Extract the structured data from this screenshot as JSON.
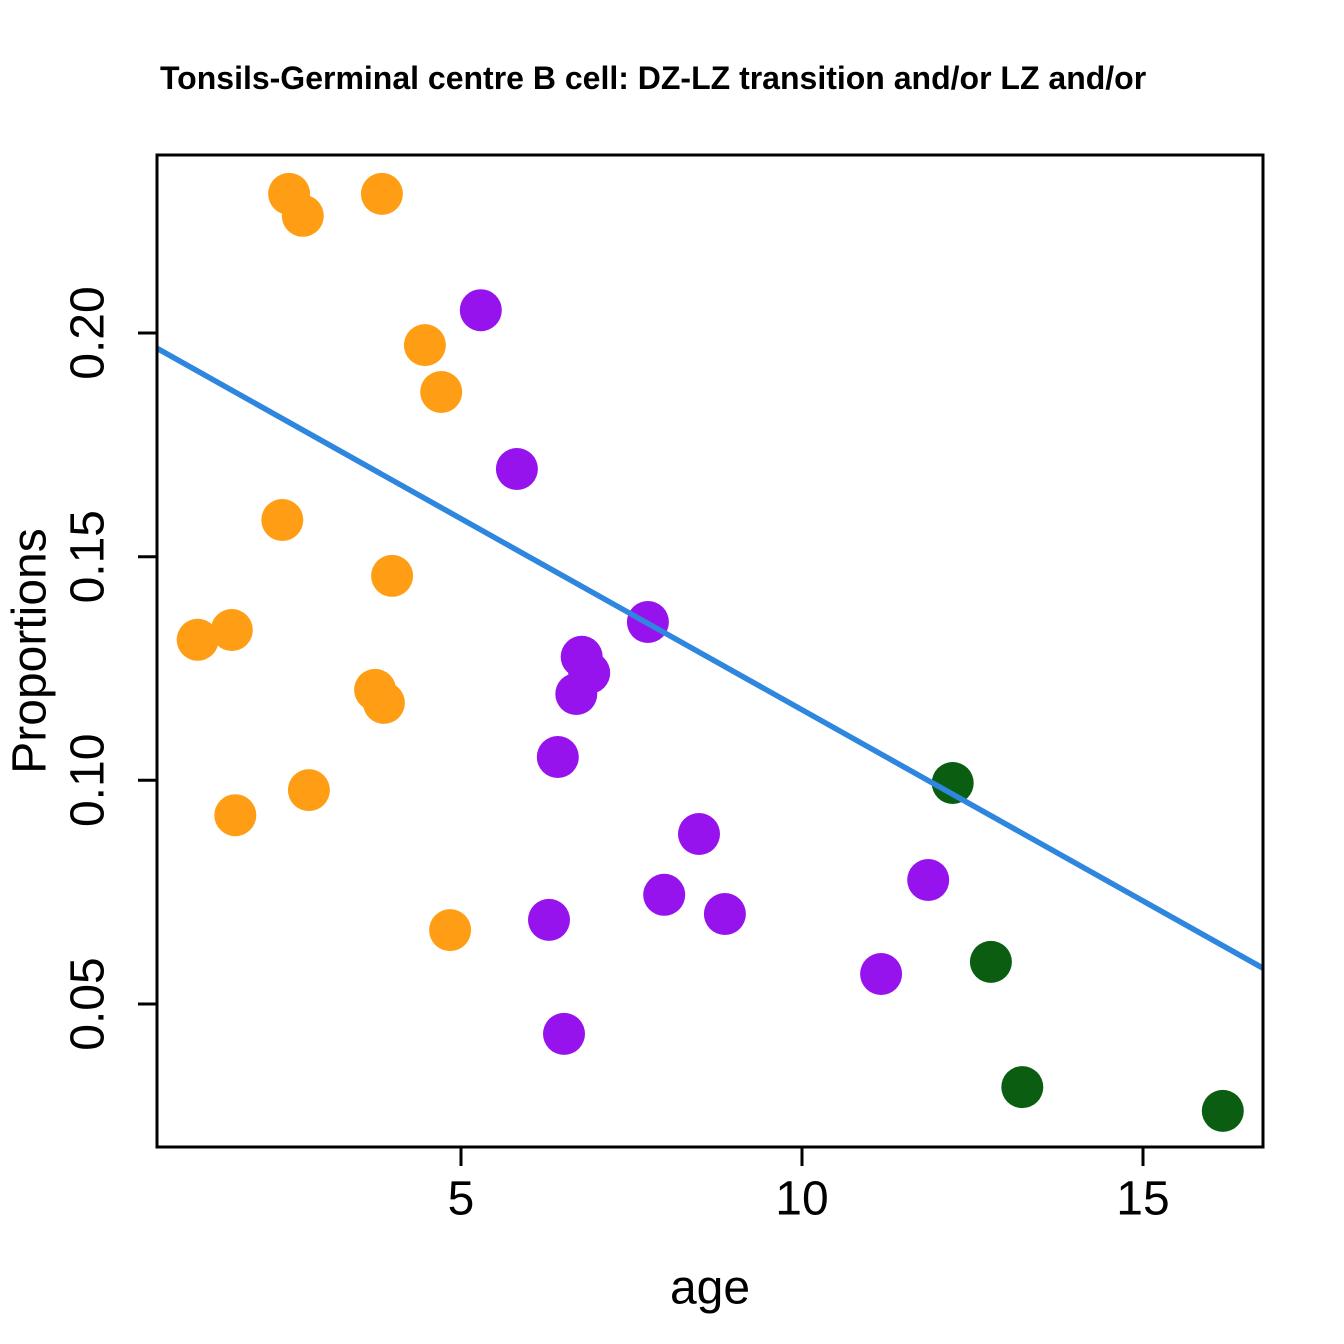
{
  "figure": {
    "title": "Tonsils-Germinal centre B cell: DZ-LZ transition and/or LZ and/or",
    "xlabel": "age",
    "ylabel": "Proportions"
  },
  "colors": {
    "group_orange": "#FF9E14",
    "group_purple": "#9713EE",
    "group_green": "#0B5E11",
    "trend_line": "#2E86DE",
    "axis": "#000000",
    "background": "#FFFFFF"
  },
  "chart_data": {
    "type": "scatter",
    "title": "Tonsils-Germinal centre B cell: DZ-LZ transition and/or LZ and/or",
    "xlabel": "age",
    "ylabel": "Proportions",
    "x_ticks": [
      5,
      10,
      15
    ],
    "y_ticks": [
      0.05,
      0.1,
      0.15,
      0.2
    ],
    "xlim": [
      0.54,
      16.76
    ],
    "ylim": [
      0.018,
      0.24
    ],
    "grid": false,
    "legend_position": "none",
    "point_radius_px": 21,
    "series": [
      {
        "name": "orange-group",
        "color": "#FF9E14",
        "points": [
          [
            2.48,
            0.2311
          ],
          [
            2.68,
            0.2262
          ],
          [
            3.84,
            0.2311
          ],
          [
            4.47,
            0.1973
          ],
          [
            4.71,
            0.1868
          ],
          [
            2.38,
            0.1582
          ],
          [
            3.99,
            0.1457
          ],
          [
            1.64,
            0.1336
          ],
          [
            1.14,
            0.1314
          ],
          [
            3.74,
            0.1202
          ],
          [
            3.87,
            0.1173
          ],
          [
            2.77,
            0.0978
          ],
          [
            1.69,
            0.0922
          ],
          [
            4.84,
            0.0665
          ]
        ]
      },
      {
        "name": "purple-group",
        "color": "#9713EE",
        "points": [
          [
            5.29,
            0.2051
          ],
          [
            5.82,
            0.1696
          ],
          [
            7.74,
            0.1354
          ],
          [
            6.77,
            0.1276
          ],
          [
            6.88,
            0.124
          ],
          [
            6.69,
            0.1193
          ],
          [
            6.42,
            0.1052
          ],
          [
            6.29,
            0.0688
          ],
          [
            6.51,
            0.0433
          ],
          [
            8.49,
            0.088
          ],
          [
            7.98,
            0.0744
          ],
          [
            8.87,
            0.0701
          ],
          [
            11.85,
            0.0777
          ],
          [
            11.16,
            0.0567
          ]
        ]
      },
      {
        "name": "darkgreen-group",
        "color": "#0B5E11",
        "points": [
          [
            12.21,
            0.0994
          ],
          [
            12.77,
            0.0594
          ],
          [
            13.23,
            0.0314
          ],
          [
            16.17,
            0.0261
          ]
        ]
      }
    ],
    "trend_line": {
      "type": "linear-fit",
      "color": "#2E86DE",
      "start": [
        0.54,
        0.1966
      ],
      "end": [
        16.76,
        0.058
      ],
      "slope": -0.00855,
      "intercept": 0.2012
    }
  }
}
